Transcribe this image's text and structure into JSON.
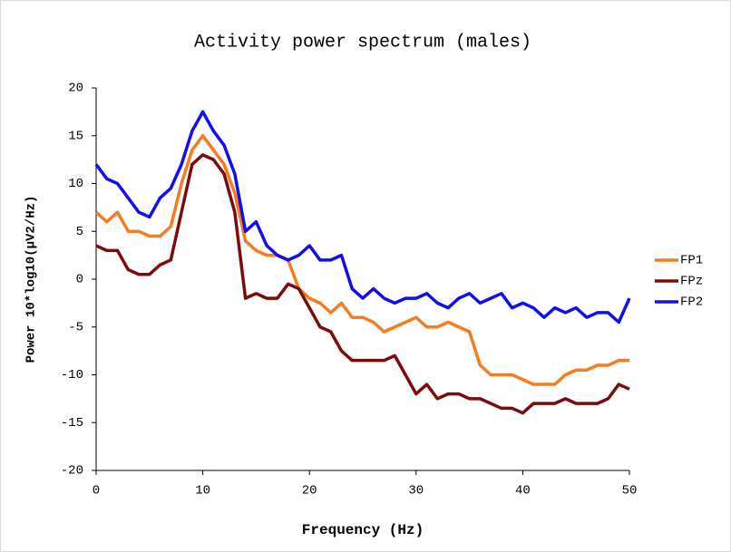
{
  "chart_data": {
    "type": "line",
    "title": "Activity power spectrum (males)",
    "xlabel": "Frequency (Hz)",
    "ylabel": "Power 10*log10(μV2/Hz)",
    "x": [
      0,
      1,
      2,
      3,
      4,
      5,
      6,
      7,
      8,
      9,
      10,
      11,
      12,
      13,
      14,
      15,
      16,
      17,
      18,
      19,
      20,
      21,
      22,
      23,
      24,
      25,
      26,
      27,
      28,
      29,
      30,
      31,
      32,
      33,
      34,
      35,
      36,
      37,
      38,
      39,
      40,
      41,
      42,
      43,
      44,
      45,
      46,
      47,
      48,
      49,
      50
    ],
    "series": [
      {
        "name": "FP1",
        "color": "#f57c20",
        "values": [
          7,
          6,
          7,
          5,
          5,
          4.5,
          4.5,
          5.5,
          10,
          13.5,
          15,
          13.5,
          12,
          9,
          4,
          3,
          2.5,
          2.5,
          2,
          -1,
          -2,
          -2.5,
          -3.5,
          -2.5,
          -4,
          -4,
          -4.5,
          -5.5,
          -5,
          -4.5,
          -4,
          -5,
          -5,
          -4.5,
          -5,
          -5.5,
          -9,
          -10,
          -10,
          -10,
          -10.5,
          -11,
          -11,
          -11,
          -10,
          -9.5,
          -9.5,
          -9,
          -9,
          -8.5,
          -8.5
        ]
      },
      {
        "name": "FPz",
        "color": "#7b0c0c",
        "values": [
          3.5,
          3,
          3,
          1,
          0.5,
          0.5,
          1.5,
          2,
          7,
          12,
          13,
          12.5,
          11,
          7,
          -2,
          -1.5,
          -2,
          -2,
          -0.5,
          -1,
          -3,
          -5,
          -5.5,
          -7.5,
          -8.5,
          -8.5,
          -8.5,
          -8.5,
          -8,
          -10,
          -12,
          -11,
          -12.5,
          -12,
          -12,
          -12.5,
          -12.5,
          -13,
          -13.5,
          -13.5,
          -14,
          -13,
          -13,
          -13,
          -12.5,
          -13,
          -13,
          -13,
          -12.5,
          -11,
          -11.5
        ]
      },
      {
        "name": "FP2",
        "color": "#1010ee",
        "values": [
          12,
          10.5,
          10,
          8.5,
          7,
          6.5,
          8.5,
          9.5,
          12,
          15.5,
          17.5,
          15.5,
          14,
          11,
          5,
          6,
          3.5,
          2.5,
          2,
          2.5,
          3.5,
          2,
          2,
          2.5,
          -1,
          -2,
          -1,
          -2,
          -2.5,
          -2,
          -2,
          -1.5,
          -2.5,
          -3,
          -2,
          -1.5,
          -2.5,
          -2,
          -1.5,
          -3,
          -2.5,
          -3,
          -4,
          -3,
          -3.5,
          -3,
          -4,
          -3.5,
          -3.5,
          -4.5,
          -2
        ]
      }
    ],
    "xlim": [
      0,
      50
    ],
    "xticks": [
      0,
      10,
      20,
      30,
      40,
      50
    ],
    "ylim": [
      -20,
      20
    ],
    "yticks": [
      -20,
      -15,
      -10,
      -5,
      0,
      5,
      10,
      15,
      20
    ],
    "grid": false,
    "legend": "right"
  }
}
